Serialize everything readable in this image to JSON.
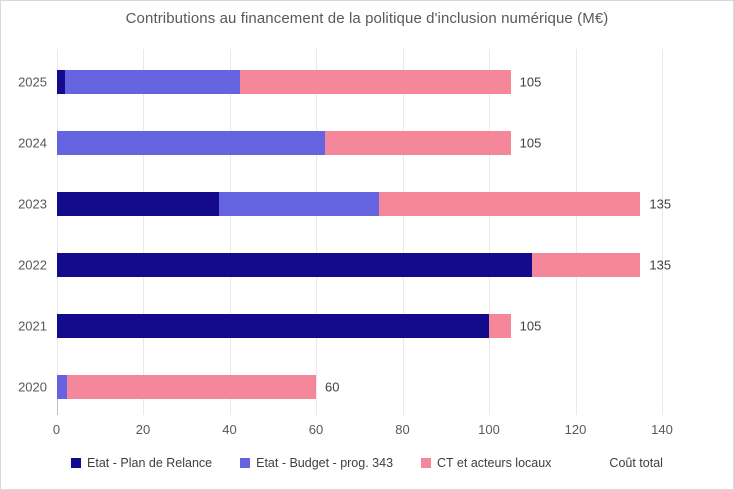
{
  "chart_data": {
    "type": "bar",
    "orientation": "horizontal",
    "stacked": true,
    "title": "Contributions au financement de la politique d'inclusion numérique (M€)",
    "categories": [
      "2025",
      "2024",
      "2023",
      "2022",
      "2021",
      "2020"
    ],
    "series": [
      {
        "name": "Etat - Plan de Relance",
        "color": "#140A8C",
        "values": [
          2,
          0,
          37.5,
          110,
          100,
          0
        ]
      },
      {
        "name": "Etat - Budget - prog. 343",
        "color": "#6563E0",
        "values": [
          40.5,
          62,
          37,
          0,
          0,
          2.5
        ]
      },
      {
        "name": "CT et acteurs locaux",
        "color": "#F5879B",
        "values": [
          62.5,
          43,
          60.5,
          25,
          5,
          57.5
        ]
      }
    ],
    "totals": {
      "name": "Coût total",
      "values": [
        105,
        105,
        135,
        135,
        105,
        60
      ]
    },
    "x_ticks": [
      0,
      20,
      40,
      60,
      80,
      100,
      120,
      140
    ],
    "xlim": [
      0,
      140
    ],
    "grid": true,
    "legend_position": "bottom",
    "legend": [
      "Etat - Plan de Relance",
      "Etat - Budget - prog. 343",
      "CT et acteurs locaux",
      "Coût total"
    ]
  },
  "style_colors": {
    "title_text": "#595959",
    "axis_text": "#595959",
    "data_label_text": "#404040",
    "gridline": "#E9E9E9",
    "frame_border": "#D9D9D9"
  }
}
